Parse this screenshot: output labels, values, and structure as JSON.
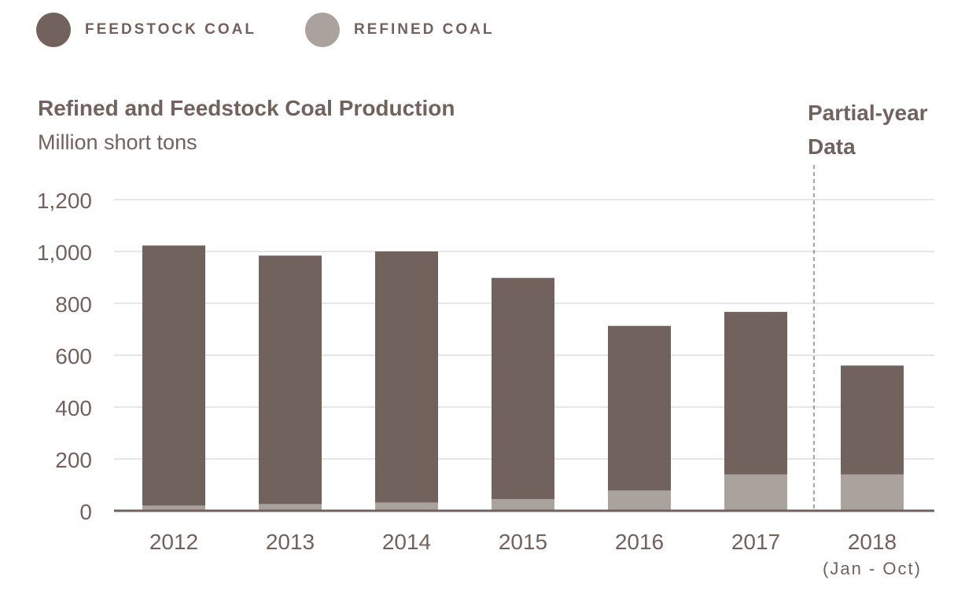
{
  "legend": {
    "items": [
      {
        "label": "FEEDSTOCK COAL",
        "color": "#72625d"
      },
      {
        "label": "REFINED COAL",
        "color": "#aaa29d"
      }
    ]
  },
  "header": {
    "title": "Refined and Feedstock Coal Production",
    "subtitle": "Million short tons"
  },
  "annotation": {
    "line1": "Partial-year",
    "line2": "Data"
  },
  "chart_data": {
    "type": "bar",
    "stacked": true,
    "title": "Refined and Feedstock Coal Production",
    "subtitle": "Million short tons",
    "categories": [
      "2012",
      "2013",
      "2014",
      "2015",
      "2016",
      "2017",
      "2018"
    ],
    "category_sublabels": [
      "",
      "",
      "",
      "",
      "",
      "",
      "(Jan - Oct)"
    ],
    "series": [
      {
        "name": "REFINED COAL",
        "color": "#aaa29d",
        "values": [
          20,
          26,
          32,
          45,
          78,
          140,
          140
        ]
      },
      {
        "name": "FEEDSTOCK COAL",
        "color": "#72625d",
        "values": [
          1003,
          958,
          968,
          853,
          635,
          627,
          420
        ]
      }
    ],
    "yticks": [
      0,
      200,
      400,
      600,
      800,
      1000,
      1200
    ],
    "ytick_labels": [
      "0",
      "200",
      "400",
      "600",
      "800",
      "1,000",
      "1,200"
    ],
    "ylim": [
      0,
      1200
    ],
    "grid": true,
    "partial_year_category": "2018",
    "axis_color": "#72625d",
    "grid_color": "#cccccc"
  }
}
